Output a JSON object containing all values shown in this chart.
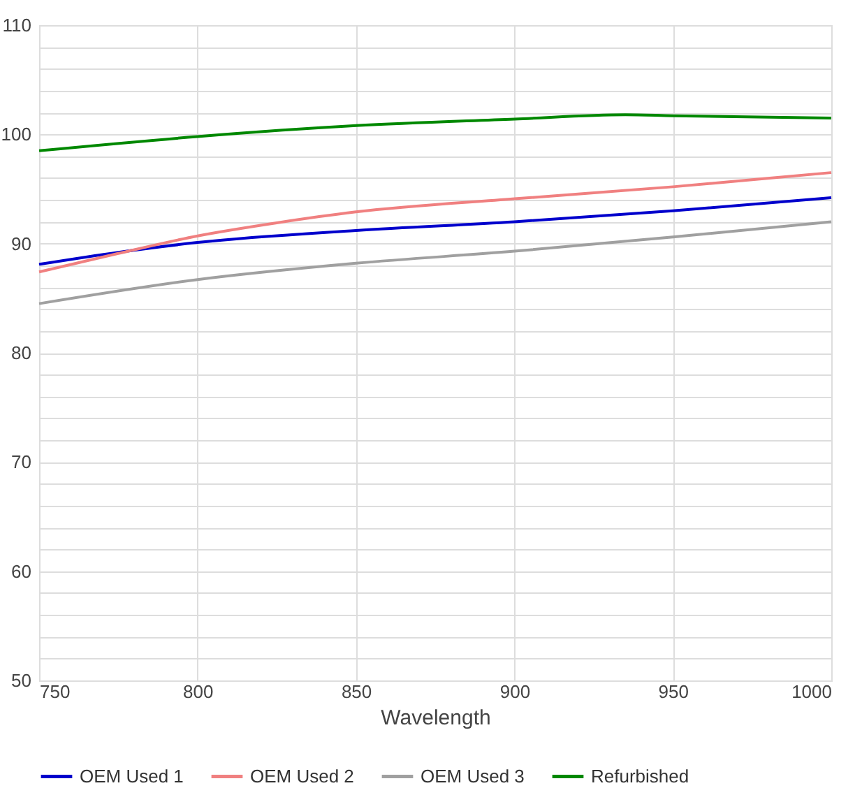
{
  "chart_data": {
    "type": "line",
    "xlabel": "Wavelength",
    "xlim": [
      750,
      1000
    ],
    "xticks": [
      750,
      800,
      850,
      900,
      950,
      1000
    ],
    "ylim": [
      50,
      110
    ],
    "yticks": [
      50,
      {
        "value": 52,
        "label": null
      },
      {
        "value": 54,
        "label": null
      },
      {
        "value": 56,
        "label": null
      },
      {
        "value": 58,
        "label": null
      },
      60,
      {
        "value": 62,
        "label": null
      },
      {
        "value": 64,
        "label": null
      },
      {
        "value": 66,
        "label": null
      },
      {
        "value": 68,
        "label": null
      },
      70,
      {
        "value": 72,
        "label": null
      },
      {
        "value": 74,
        "label": null
      },
      {
        "value": 76,
        "label": null
      },
      {
        "value": 78,
        "label": null
      },
      80,
      {
        "value": 82,
        "label": null
      },
      {
        "value": 84,
        "label": null
      },
      {
        "value": 86,
        "label": null
      },
      {
        "value": 88,
        "label": null
      },
      90,
      {
        "value": 92,
        "label": null
      },
      {
        "value": 94,
        "label": null
      },
      {
        "value": 96,
        "label": null
      },
      {
        "value": 98,
        "label": null
      },
      100,
      {
        "value": 102,
        "label": null
      },
      {
        "value": 104,
        "label": null
      },
      {
        "value": 106,
        "label": null
      },
      {
        "value": 108,
        "label": null
      },
      110
    ],
    "grid": true,
    "legend": "bottom",
    "marker": "none",
    "line_style": "solid",
    "series": [
      {
        "name": "OEM Used 1",
        "color": "#0000cc",
        "x": [
          750,
          775,
          800,
          850,
          900,
          950,
          1000
        ],
        "values": [
          88.1,
          89.2,
          90.1,
          91.2,
          92.0,
          93.0,
          94.2
        ]
      },
      {
        "name": "OEM Used 2",
        "color": "#f08080",
        "x": [
          750,
          775,
          800,
          825,
          850,
          900,
          950,
          1000
        ],
        "values": [
          87.4,
          89.1,
          90.7,
          91.9,
          92.9,
          94.1,
          95.2,
          96.5
        ]
      },
      {
        "name": "OEM Used 3",
        "color": "#a0a0a0",
        "x": [
          750,
          800,
          850,
          900,
          950,
          1000
        ],
        "values": [
          84.5,
          86.7,
          88.2,
          89.3,
          90.6,
          92.0
        ]
      },
      {
        "name": "Refurbished",
        "color": "#008800",
        "x": [
          750,
          800,
          850,
          900,
          935,
          950,
          1000
        ],
        "values": [
          98.5,
          99.8,
          100.8,
          101.4,
          101.8,
          101.7,
          101.5
        ]
      }
    ]
  }
}
